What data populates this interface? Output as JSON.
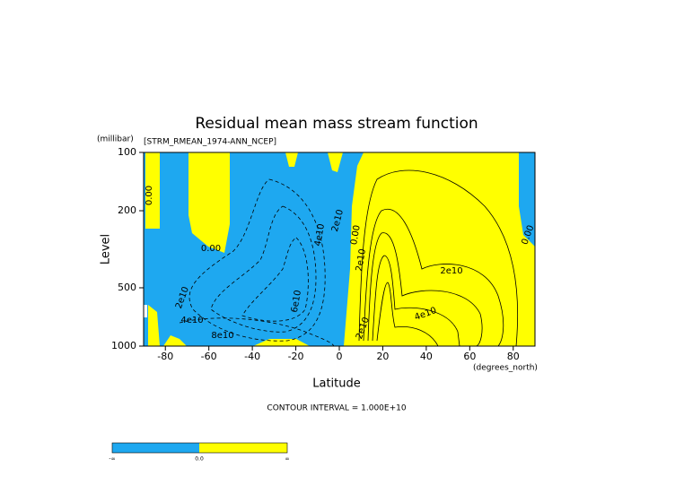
{
  "chart_data": {
    "type": "contour",
    "title": "Residual mean mass stream function",
    "subtitle": "[STRM_RMEAN_1974-ANN_NCEP]",
    "xlabel": "Latitude",
    "ylabel": "Level",
    "x_unit": "(degrees_north)",
    "y_unit": "(millibar)",
    "note": "CONTOUR INTERVAL = 1.000E+10",
    "xlim": [
      -90,
      90
    ],
    "xticks": [
      -80,
      -60,
      -40,
      -20,
      0,
      20,
      40,
      60,
      80
    ],
    "ylim": [
      1000,
      100
    ],
    "yticks": [
      100,
      200,
      500,
      1000
    ],
    "ylog": true,
    "negative_color": "#1ea8f0",
    "positive_color": "#ffff00",
    "contour_labels": [
      "0.00",
      "0.00",
      "0.00",
      "0.00",
      "2e10",
      "4e10",
      "6e10",
      "8e10",
      "2e10",
      "2e10",
      "2e10",
      "4e10",
      "2e10",
      "4e10"
    ],
    "colorbar_labels": [
      "-∞",
      "0.0",
      "∞"
    ]
  }
}
